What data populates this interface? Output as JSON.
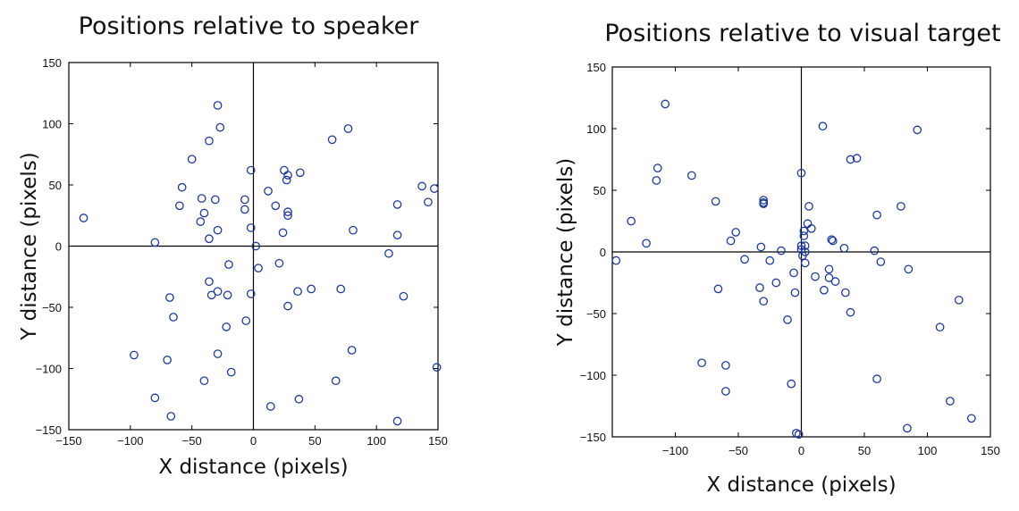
{
  "chart_data": [
    {
      "type": "scatter",
      "title": "Positions relative to speaker",
      "xlabel": "X distance (pixels)",
      "ylabel": "Y distance (pixels)",
      "xlim": [
        -150,
        150
      ],
      "ylim": [
        -150,
        150
      ],
      "xticks": [
        "−150",
        "−100",
        "−50",
        "0",
        "50",
        "100",
        "150"
      ],
      "yticks": [
        "150",
        "100",
        "50",
        "0",
        "−50",
        "−100",
        "−150"
      ],
      "grid": false,
      "marker_color": "#1f3a93",
      "points": [
        [
          -138,
          23
        ],
        [
          -80,
          3
        ],
        [
          -97,
          -89
        ],
        [
          -80,
          -124
        ],
        [
          -70,
          -93
        ],
        [
          -67,
          -139
        ],
        [
          -68,
          -42
        ],
        [
          -65,
          -58
        ],
        [
          -58,
          48
        ],
        [
          -60,
          33
        ],
        [
          -50,
          71
        ],
        [
          -43,
          20
        ],
        [
          -42,
          39
        ],
        [
          -40,
          27
        ],
        [
          -40,
          -110
        ],
        [
          -36,
          86
        ],
        [
          -36,
          6
        ],
        [
          -36,
          -29
        ],
        [
          -34,
          -40
        ],
        [
          -31,
          38
        ],
        [
          -29,
          115
        ],
        [
          -29,
          13
        ],
        [
          -29,
          -37
        ],
        [
          -29,
          -88
        ],
        [
          -27,
          97
        ],
        [
          -22,
          -66
        ],
        [
          -21,
          -40
        ],
        [
          -20,
          -15
        ],
        [
          -18,
          -103
        ],
        [
          -7,
          38
        ],
        [
          -7,
          30
        ],
        [
          -6,
          -61
        ],
        [
          -2,
          62
        ],
        [
          -2,
          15
        ],
        [
          -2,
          -39
        ],
        [
          2,
          0
        ],
        [
          4,
          -18
        ],
        [
          12,
          45
        ],
        [
          14,
          -131
        ],
        [
          18,
          33
        ],
        [
          21,
          -14
        ],
        [
          24,
          11
        ],
        [
          25,
          62
        ],
        [
          27,
          54
        ],
        [
          28,
          58
        ],
        [
          28,
          28
        ],
        [
          28,
          25
        ],
        [
          28,
          -49
        ],
        [
          36,
          -37
        ],
        [
          37,
          -125
        ],
        [
          38,
          60
        ],
        [
          47,
          -35
        ],
        [
          64,
          87
        ],
        [
          67,
          -110
        ],
        [
          71,
          -35
        ],
        [
          77,
          96
        ],
        [
          80,
          -85
        ],
        [
          81,
          13
        ],
        [
          110,
          -6
        ],
        [
          117,
          34
        ],
        [
          117,
          9
        ],
        [
          117,
          -143
        ],
        [
          122,
          -41
        ],
        [
          137,
          49
        ],
        [
          142,
          36
        ],
        [
          147,
          47
        ],
        [
          149,
          -99
        ]
      ]
    },
    {
      "type": "scatter",
      "title": "Positions relative to visual target",
      "xlabel": "X distance (pixels)",
      "ylabel": "Y distance (pixels)",
      "xlim": [
        -150,
        150
      ],
      "ylim": [
        -150,
        150
      ],
      "xticks": [
        "−100",
        "−50",
        "0",
        "50",
        "100",
        "150"
      ],
      "yticks": [
        "150",
        "100",
        "50",
        "0",
        "−50",
        "−100",
        "−150"
      ],
      "grid": false,
      "marker_color": "#1f3a93",
      "points": [
        [
          -147,
          -7
        ],
        [
          -135,
          25
        ],
        [
          -123,
          7
        ],
        [
          -114,
          68
        ],
        [
          -115,
          58
        ],
        [
          -108,
          120
        ],
        [
          -87,
          62
        ],
        [
          -79,
          -90
        ],
        [
          -68,
          41
        ],
        [
          -66,
          -30
        ],
        [
          -60,
          -92
        ],
        [
          -60,
          -113
        ],
        [
          -56,
          9
        ],
        [
          -52,
          16
        ],
        [
          -45,
          -6
        ],
        [
          -32,
          4
        ],
        [
          -33,
          -29
        ],
        [
          -30,
          42
        ],
        [
          -30,
          40
        ],
        [
          -30,
          39
        ],
        [
          -30,
          -40
        ],
        [
          -25,
          -7
        ],
        [
          -20,
          -25
        ],
        [
          -16,
          1
        ],
        [
          -11,
          -55
        ],
        [
          -8,
          -107
        ],
        [
          -6,
          -17
        ],
        [
          -5,
          -33
        ],
        [
          -4,
          -147
        ],
        [
          -2,
          -148
        ],
        [
          0,
          64
        ],
        [
          0,
          5
        ],
        [
          0,
          2
        ],
        [
          1,
          -3
        ],
        [
          2,
          13
        ],
        [
          2,
          17
        ],
        [
          3,
          0
        ],
        [
          3,
          5
        ],
        [
          3,
          -9
        ],
        [
          5,
          23
        ],
        [
          6,
          37
        ],
        [
          8,
          19
        ],
        [
          11,
          -20
        ],
        [
          17,
          102
        ],
        [
          18,
          -31
        ],
        [
          22,
          -14
        ],
        [
          22,
          -21
        ],
        [
          24,
          10
        ],
        [
          25,
          9
        ],
        [
          27,
          -24
        ],
        [
          34,
          3
        ],
        [
          35,
          -33
        ],
        [
          39,
          75
        ],
        [
          39,
          -49
        ],
        [
          44,
          76
        ],
        [
          58,
          1
        ],
        [
          60,
          30
        ],
        [
          60,
          -103
        ],
        [
          63,
          -8
        ],
        [
          79,
          37
        ],
        [
          84,
          -143
        ],
        [
          85,
          -14
        ],
        [
          92,
          99
        ],
        [
          110,
          -61
        ],
        [
          118,
          -121
        ],
        [
          125,
          -39
        ],
        [
          135,
          -135
        ]
      ]
    }
  ]
}
